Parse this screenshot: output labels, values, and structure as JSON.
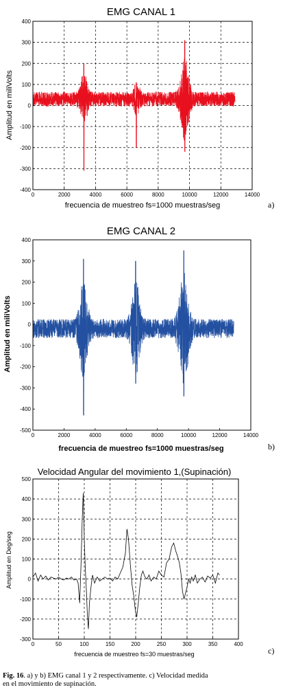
{
  "chart_data": [
    {
      "type": "line",
      "title": "EMG CANAL 1",
      "xlabel": "frecuencia de muestreo fs=1000 muestras/seg",
      "ylabel": "Amplitud en miliVolts",
      "panel_label": "a)",
      "xlim": [
        0,
        14000
      ],
      "ylim": [
        -400,
        400
      ],
      "xticks": [
        "0",
        "2000",
        "4000",
        "6000",
        "8000",
        "10000",
        "12000",
        "14000"
      ],
      "yticks": [
        "400",
        "300",
        "200",
        "100",
        "0",
        "-100",
        "-200",
        "-300",
        "-400"
      ],
      "grid": true,
      "color": "#e8101e",
      "series": [
        {
          "baseline": 30,
          "noise": 35,
          "x_end": 12900,
          "events": [
            {
              "x": 3250,
              "width": 250,
              "max": 200,
              "min": -310
            },
            {
              "x": 6600,
              "width": 250,
              "max": 110,
              "min": -200
            },
            {
              "x": 9700,
              "width": 300,
              "max": 310,
              "min": -220
            }
          ]
        }
      ]
    },
    {
      "type": "line",
      "title": "EMG CANAL 2",
      "xlabel": "frecuencia de muestreo fs=1000 muestras/seg",
      "ylabel": "Amplitud en miliVolts",
      "panel_label": "b)",
      "xlim": [
        0,
        14000
      ],
      "ylim": [
        -500,
        400
      ],
      "xticks": [
        "0",
        "2000",
        "4000",
        "6000",
        "8000",
        "10000",
        "12000",
        "14000"
      ],
      "yticks": [
        "400",
        "300",
        "200",
        "100",
        "0",
        "-100",
        "-200",
        "-300",
        "-400",
        "-500"
      ],
      "grid": false,
      "color": "#2350a0",
      "series": [
        {
          "baseline": -20,
          "noise": 45,
          "x_end": 12900,
          "events": [
            {
              "x": 3250,
              "width": 300,
              "max": 310,
              "min": -430
            },
            {
              "x": 6600,
              "width": 300,
              "max": 300,
              "min": -280
            },
            {
              "x": 9700,
              "width": 350,
              "max": 350,
              "min": -340
            }
          ]
        }
      ]
    },
    {
      "type": "line",
      "title": "Velocidad Angular del movimiento 1,(Supinación)",
      "xlabel": "frecuencia de muestreo fs=30 muestras/seg",
      "ylabel": "Amplitud en Deg/seg",
      "panel_label": "c)",
      "xlim": [
        0,
        400
      ],
      "ylim": [
        -300,
        500
      ],
      "xticks": [
        "0",
        "50",
        "100",
        "150",
        "200",
        "250",
        "300",
        "350",
        "400"
      ],
      "yticks": [
        "500",
        "400",
        "300",
        "200",
        "100",
        "0",
        "-100",
        "-200",
        "-300"
      ],
      "grid": true,
      "color": "#000000",
      "series": [
        {
          "x": [
            0,
            5,
            10,
            15,
            20,
            25,
            30,
            35,
            40,
            45,
            50,
            55,
            60,
            65,
            70,
            75,
            80,
            85,
            88,
            91,
            94,
            96,
            98,
            100,
            102,
            104,
            106,
            108,
            110,
            113,
            116,
            120,
            125,
            130,
            135,
            140,
            145,
            150,
            155,
            160,
            165,
            170,
            175,
            180,
            183,
            186,
            190,
            193,
            196,
            199,
            202,
            205,
            208,
            211,
            214,
            218,
            222,
            226,
            230,
            235,
            240,
            245,
            250,
            255,
            260,
            265,
            270,
            274,
            278,
            282,
            285,
            288,
            291,
            294,
            297,
            300,
            303,
            306,
            309,
            312,
            316,
            320,
            325,
            330,
            335,
            340,
            345,
            350,
            355,
            360,
            363
          ],
          "y": [
            10,
            30,
            -10,
            20,
            0,
            15,
            -5,
            10,
            5,
            0,
            10,
            0,
            -5,
            5,
            0,
            10,
            -5,
            0,
            -20,
            -120,
            100,
            300,
            430,
            200,
            50,
            -50,
            -180,
            -250,
            -120,
            -40,
            20,
            -20,
            10,
            -10,
            0,
            10,
            0,
            5,
            -10,
            10,
            0,
            30,
            60,
            130,
            250,
            200,
            60,
            -30,
            -80,
            -150,
            -190,
            -120,
            -40,
            20,
            40,
            10,
            0,
            20,
            -10,
            10,
            0,
            40,
            20,
            10,
            80,
            100,
            160,
            180,
            140,
            110,
            80,
            30,
            -60,
            -100,
            -70,
            -40,
            0,
            -20,
            10,
            -10,
            20,
            -20,
            0,
            10,
            -15,
            15,
            5,
            20,
            -20,
            30,
            20
          ]
        }
      ]
    }
  ],
  "caption": {
    "fig": "Fig. 16",
    "text": ". a) y b) EMG canal 1 y 2 respectivamente. c) Velocidad medida en el movimiento de supinación."
  }
}
